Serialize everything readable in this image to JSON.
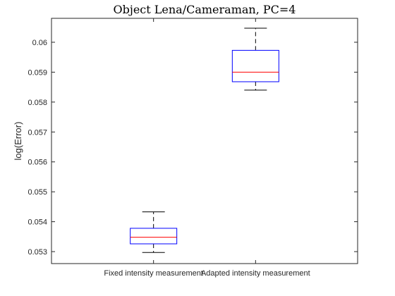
{
  "chart_data": {
    "type": "box",
    "title": "Object Lena/Cameraman, PC=4",
    "xlabel": "",
    "ylabel": "log(Error)",
    "categories": [
      "Fixed intensity measurement",
      "Adapted intensity measurement"
    ],
    "ylim": [
      0.0526,
      0.0608
    ],
    "yticks": [
      0.053,
      0.054,
      0.055,
      0.056,
      0.057,
      0.058,
      0.059,
      0.06
    ],
    "ytick_labels": [
      "0.053",
      "0.054",
      "0.055",
      "0.056",
      "0.057",
      "0.058",
      "0.059",
      "0.06"
    ],
    "grid": false,
    "boxes": [
      {
        "min": 0.05297,
        "q1": 0.05326,
        "median": 0.05348,
        "q3": 0.05378,
        "max": 0.05433
      },
      {
        "min": 0.0584,
        "q1": 0.05868,
        "median": 0.059,
        "q3": 0.05973,
        "max": 0.06047
      }
    ],
    "colors": {
      "box": "#0000ff",
      "median": "#ff0000",
      "whisker": "#000000",
      "axis": "#262626"
    }
  }
}
